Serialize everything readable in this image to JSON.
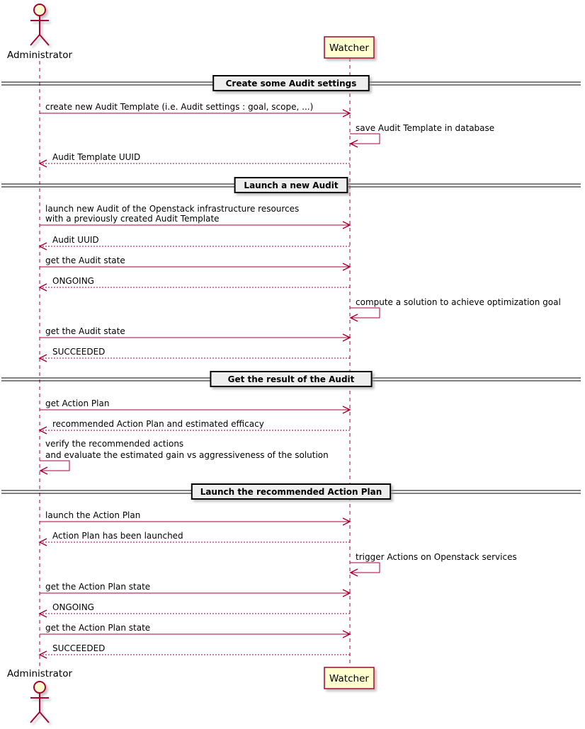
{
  "participants": [
    {
      "id": "admin",
      "label": "Administrator",
      "kind": "actor"
    },
    {
      "id": "watcher",
      "label": "Watcher",
      "kind": "participant"
    }
  ],
  "colors": {
    "line": "#A80036",
    "fill": "#FEFECE",
    "divider_fill": "#EEEEEE",
    "shadow": "#CCCCCC"
  },
  "steps": [
    {
      "type": "divider",
      "label": "Create some Audit settings"
    },
    {
      "type": "sync",
      "from": "admin",
      "to": "watcher",
      "lines": [
        "create new Audit Template (i.e. Audit settings : goal, scope, ...)"
      ]
    },
    {
      "type": "self",
      "from": "watcher",
      "lines": [
        "save Audit Template in database"
      ]
    },
    {
      "type": "return",
      "from": "watcher",
      "to": "admin",
      "lines": [
        "Audit Template UUID"
      ]
    },
    {
      "type": "divider",
      "label": "Launch a new Audit"
    },
    {
      "type": "sync",
      "from": "admin",
      "to": "watcher",
      "lines": [
        "launch new Audit of the Openstack infrastructure resources",
        "with a previously created Audit Template"
      ]
    },
    {
      "type": "return",
      "from": "watcher",
      "to": "admin",
      "lines": [
        "Audit UUID"
      ]
    },
    {
      "type": "sync",
      "from": "admin",
      "to": "watcher",
      "lines": [
        "get the Audit state"
      ]
    },
    {
      "type": "return",
      "from": "watcher",
      "to": "admin",
      "lines": [
        "ONGOING"
      ]
    },
    {
      "type": "self",
      "from": "watcher",
      "lines": [
        "compute a solution to achieve optimization goal"
      ]
    },
    {
      "type": "sync",
      "from": "admin",
      "to": "watcher",
      "lines": [
        "get the Audit state"
      ]
    },
    {
      "type": "return",
      "from": "watcher",
      "to": "admin",
      "lines": [
        "SUCCEEDED"
      ]
    },
    {
      "type": "divider",
      "label": "Get the result of the Audit"
    },
    {
      "type": "sync",
      "from": "admin",
      "to": "watcher",
      "lines": [
        "get Action Plan"
      ]
    },
    {
      "type": "return",
      "from": "watcher",
      "to": "admin",
      "lines": [
        "recommended Action Plan and estimated efficacy"
      ]
    },
    {
      "type": "self",
      "from": "admin",
      "lines": [
        "verify the recommended actions",
        "and evaluate the estimated gain vs aggressiveness of the solution"
      ]
    },
    {
      "type": "divider",
      "label": "Launch the recommended Action Plan"
    },
    {
      "type": "sync",
      "from": "admin",
      "to": "watcher",
      "lines": [
        "launch the Action Plan"
      ]
    },
    {
      "type": "return",
      "from": "watcher",
      "to": "admin",
      "lines": [
        "Action Plan has been launched"
      ]
    },
    {
      "type": "self",
      "from": "watcher",
      "lines": [
        "trigger Actions on Openstack services"
      ]
    },
    {
      "type": "sync",
      "from": "admin",
      "to": "watcher",
      "lines": [
        "get the Action Plan state"
      ]
    },
    {
      "type": "return",
      "from": "watcher",
      "to": "admin",
      "lines": [
        "ONGOING"
      ]
    },
    {
      "type": "sync",
      "from": "admin",
      "to": "watcher",
      "lines": [
        "get the Action Plan state"
      ]
    },
    {
      "type": "return",
      "from": "watcher",
      "to": "admin",
      "lines": [
        "SUCCEEDED"
      ]
    }
  ]
}
